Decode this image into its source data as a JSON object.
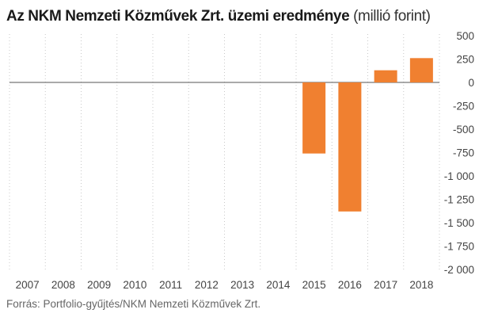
{
  "chart_data": {
    "type": "bar",
    "title": "Az NKM Nemzeti Közművek Zrt. üzemi eredménye",
    "subtitle": "(millió forint)",
    "source": "Forrás: Portfolio-gyűjtés/NKM Nemzeti Közművek Zrt.",
    "categories": [
      "2007",
      "2008",
      "2009",
      "2010",
      "2011",
      "2012",
      "2013",
      "2014",
      "2015",
      "2016",
      "2017",
      "2018"
    ],
    "values": [
      null,
      null,
      null,
      null,
      null,
      null,
      null,
      null,
      -760,
      -1380,
      130,
      260
    ],
    "ylim": [
      -2000,
      500
    ],
    "yticks": [
      500,
      250,
      0,
      -250,
      -500,
      -750,
      -1000,
      -1250,
      -1500,
      -1750,
      -2000
    ],
    "ytick_labels": [
      "500",
      "250",
      "0",
      "-250",
      "-500",
      "-750",
      "-1 000",
      "-1 250",
      "-1 500",
      "-1 750",
      "-2 000"
    ],
    "grid": true,
    "bar_color": "#f08030"
  }
}
